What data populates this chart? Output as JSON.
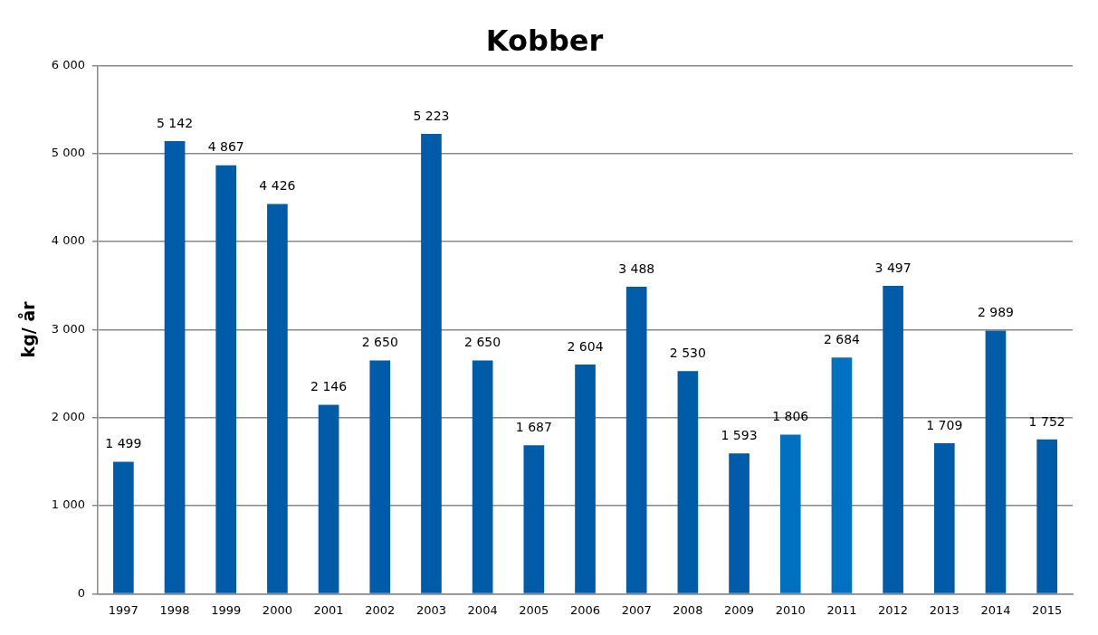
{
  "chart_data": {
    "type": "bar",
    "title": "Kobber",
    "ylabel": "kg/ år",
    "categories": [
      "1997",
      "1998",
      "1999",
      "2000",
      "2001",
      "2002",
      "2003",
      "2004",
      "2005",
      "2006",
      "2007",
      "2008",
      "2009",
      "2010",
      "2011",
      "2012",
      "2013",
      "2014",
      "2015"
    ],
    "values": [
      1499,
      5142,
      4867,
      4426,
      2146,
      2650,
      5223,
      2650,
      1687,
      2604,
      3488,
      2530,
      1593,
      1806,
      2684,
      3497,
      1709,
      2989,
      1752
    ],
    "value_labels": [
      "1 499",
      "5 142",
      "4 867",
      "4 426",
      "2 146",
      "2 650",
      "5 223",
      "2 650",
      "1 687",
      "2 604",
      "3 488",
      "2 530",
      "1 593",
      "1 806",
      "2 684",
      "3 497",
      "1 709",
      "2 989",
      "1 752"
    ],
    "colors": [
      "#005ca9",
      "#005ca9",
      "#005ca9",
      "#005ca9",
      "#005ca9",
      "#005ca9",
      "#005ca9",
      "#005ca9",
      "#005ca9",
      "#005ca9",
      "#005ca9",
      "#005ca9",
      "#005ca9",
      "#0070c0",
      "#0070c0",
      "#005ca9",
      "#005ca9",
      "#005ca9",
      "#005ca9"
    ],
    "ylim": [
      0,
      6000
    ],
    "yticks": [
      {
        "value": 0,
        "label": "0"
      },
      {
        "value": 1000,
        "label": "1 000"
      },
      {
        "value": 2000,
        "label": "2 000"
      },
      {
        "value": 3000,
        "label": "3 000"
      },
      {
        "value": 4000,
        "label": "4 000"
      },
      {
        "value": 5000,
        "label": "5 000"
      },
      {
        "value": 6000,
        "label": "6 000"
      }
    ],
    "grid": "y",
    "legend": false
  }
}
